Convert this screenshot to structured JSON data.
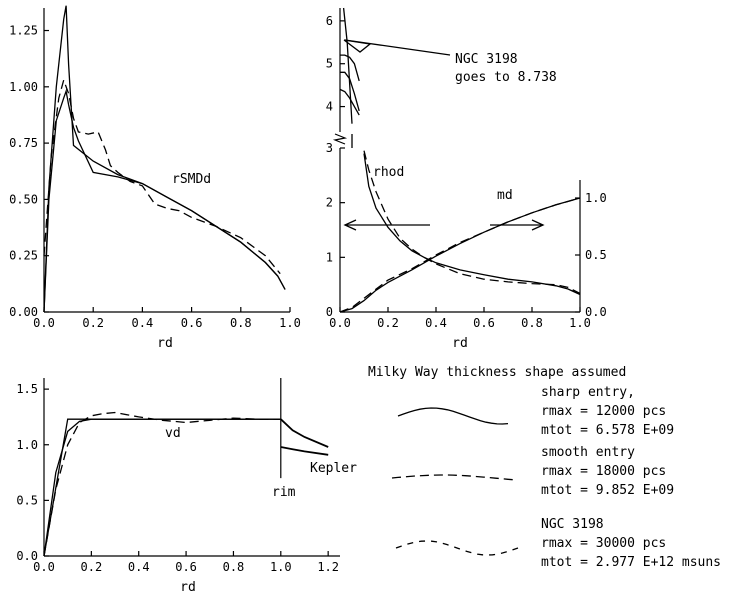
{
  "chart_data": [
    {
      "type": "line",
      "panel": "top-left",
      "series_label": "rSMDd",
      "xlabel": "rd",
      "xlim": [
        0,
        1.0
      ],
      "ylim": [
        0,
        1.35
      ],
      "xticks": [
        "0.0",
        "0.2",
        "0.4",
        "0.6",
        "0.8",
        "1.0"
      ],
      "yticks": [
        "0.00",
        "0.25",
        "0.50",
        "0.75",
        "1.00",
        "1.25"
      ],
      "series": [
        {
          "style": "solid",
          "x": [
            0,
            0.02,
            0.05,
            0.08,
            0.09,
            0.1,
            0.12,
            0.2,
            0.3,
            0.4,
            0.5,
            0.6,
            0.7,
            0.8,
            0.9,
            0.95,
            0.98
          ],
          "y": [
            0,
            0.55,
            1.0,
            1.3,
            1.36,
            1.1,
            0.74,
            0.67,
            0.61,
            0.57,
            0.51,
            0.45,
            0.38,
            0.31,
            0.22,
            0.16,
            0.1
          ]
        },
        {
          "style": "solid",
          "x": [
            0,
            0.02,
            0.05,
            0.08,
            0.09,
            0.1,
            0.12,
            0.14,
            0.2,
            0.3,
            0.4,
            0.5,
            0.6,
            0.7,
            0.8,
            0.9,
            0.95,
            0.98
          ],
          "y": [
            0,
            0.5,
            0.85,
            0.95,
            0.98,
            0.92,
            0.82,
            0.76,
            0.62,
            0.6,
            0.57,
            0.51,
            0.45,
            0.38,
            0.31,
            0.22,
            0.16,
            0.1
          ]
        },
        {
          "style": "dashed",
          "x": [
            0,
            0.03,
            0.06,
            0.08,
            0.1,
            0.12,
            0.14,
            0.18,
            0.22,
            0.25,
            0.27,
            0.3,
            0.35,
            0.4,
            0.45,
            0.5,
            0.55,
            0.6,
            0.7,
            0.8,
            0.9,
            0.96
          ],
          "y": [
            0.25,
            0.7,
            0.95,
            1.03,
            0.97,
            0.86,
            0.8,
            0.79,
            0.8,
            0.72,
            0.65,
            0.62,
            0.58,
            0.56,
            0.48,
            0.46,
            0.45,
            0.42,
            0.38,
            0.33,
            0.25,
            0.17
          ]
        }
      ]
    },
    {
      "type": "line",
      "panel": "top-right",
      "series_labels": [
        "rhod",
        "md"
      ],
      "xlabel": "rd",
      "xlim": [
        0,
        1.0
      ],
      "ylim_left": [
        0,
        3
      ],
      "ylim_left_upper_break": [
        3.5,
        6.3
      ],
      "ylim_right": [
        0,
        1.0
      ],
      "xticks": [
        "0.0",
        "0.2",
        "0.4",
        "0.6",
        "0.8",
        "1.0"
      ],
      "yticks_left": [
        "0",
        "1",
        "2",
        "3"
      ],
      "yticks_left_upper": [
        "4",
        "5",
        "6"
      ],
      "yticks_right": [
        "0.0",
        "0.5",
        "1.0"
      ],
      "series": [
        {
          "name": "rhod",
          "style": "solid",
          "x": [
            0.1,
            0.12,
            0.15,
            0.2,
            0.25,
            0.3,
            0.35,
            0.4,
            0.5,
            0.6,
            0.7,
            0.8,
            0.9,
            0.95,
            1.0
          ],
          "y": [
            2.9,
            2.3,
            1.9,
            1.55,
            1.3,
            1.12,
            1.0,
            0.9,
            0.77,
            0.68,
            0.6,
            0.55,
            0.48,
            0.42,
            0.32
          ]
        },
        {
          "name": "rhod",
          "style": "dashed",
          "x": [
            0.1,
            0.12,
            0.15,
            0.2,
            0.25,
            0.3,
            0.35,
            0.4,
            0.5,
            0.6,
            0.7,
            0.8,
            0.9,
            0.95,
            1.0
          ],
          "y": [
            2.95,
            2.6,
            2.2,
            1.7,
            1.35,
            1.15,
            1.0,
            0.88,
            0.7,
            0.6,
            0.55,
            0.52,
            0.5,
            0.45,
            0.34
          ]
        },
        {
          "name": "md",
          "style": "solid",
          "x": [
            0,
            0.05,
            0.1,
            0.15,
            0.2,
            0.3,
            0.4,
            0.5,
            0.6,
            0.7,
            0.8,
            0.9,
            1.0
          ],
          "y": [
            0,
            0.03,
            0.1,
            0.19,
            0.26,
            0.37,
            0.49,
            0.6,
            0.7,
            0.79,
            0.87,
            0.94,
            1.0
          ]
        },
        {
          "name": "md",
          "style": "dashed",
          "x": [
            0,
            0.05,
            0.1,
            0.15,
            0.2,
            0.3,
            0.4,
            0.5,
            0.6,
            0.7,
            0.8,
            0.9,
            1.0
          ],
          "y": [
            0,
            0.04,
            0.12,
            0.2,
            0.28,
            0.38,
            0.5,
            0.61,
            0.7,
            0.79,
            0.87,
            0.94,
            1.0
          ]
        }
      ],
      "upper_series": [
        {
          "style": "solid",
          "x": [
            0.0,
            0.02,
            0.04,
            0.06,
            0.08
          ],
          "y": [
            5.2,
            5.2,
            5.15,
            5.0,
            4.6
          ]
        },
        {
          "style": "solid",
          "x": [
            0.0,
            0.02,
            0.04,
            0.06,
            0.08
          ],
          "y": [
            4.8,
            4.8,
            4.65,
            4.3,
            3.9
          ]
        },
        {
          "style": "solid",
          "x": [
            0.0,
            0.02,
            0.04,
            0.06,
            0.08
          ],
          "y": [
            4.4,
            4.35,
            4.2,
            4.0,
            3.8
          ]
        }
      ],
      "annotation": {
        "line1": "NGC 3198",
        "line2": "goes to 8.738"
      }
    },
    {
      "type": "line",
      "panel": "bottom-left",
      "series_labels": [
        "vd",
        "rim",
        "Kepler"
      ],
      "xlabel": "rd",
      "xlim": [
        0,
        1.25
      ],
      "ylim": [
        0,
        1.6
      ],
      "xticks": [
        "0.0",
        "0.2",
        "0.4",
        "0.6",
        "0.8",
        "1.0",
        "1.2"
      ],
      "yticks": [
        "0.0",
        "0.5",
        "1.0",
        "1.5"
      ],
      "series": [
        {
          "style": "solid",
          "x": [
            0,
            0.1,
            1.0
          ],
          "y": [
            0,
            1.23,
            1.23
          ]
        },
        {
          "style": "solid",
          "x": [
            0,
            0.05,
            0.1,
            0.15,
            0.2,
            0.3,
            0.5,
            0.7,
            0.9,
            1.0
          ],
          "y": [
            0,
            0.75,
            1.12,
            1.21,
            1.23,
            1.23,
            1.23,
            1.23,
            1.23,
            1.23
          ]
        },
        {
          "style": "dashed",
          "x": [
            0,
            0.05,
            0.1,
            0.15,
            0.2,
            0.25,
            0.3,
            0.4,
            0.5,
            0.6,
            0.7,
            0.8,
            0.9,
            1.0
          ],
          "y": [
            0,
            0.6,
            1.0,
            1.2,
            1.26,
            1.28,
            1.29,
            1.25,
            1.22,
            1.2,
            1.22,
            1.24,
            1.23,
            1.23
          ]
        },
        {
          "style": "solid",
          "x": [
            1.0,
            1.05,
            1.1,
            1.2
          ],
          "y": [
            1.23,
            1.13,
            1.07,
            0.98
          ]
        },
        {
          "style": "solid",
          "x": [
            1.0,
            1.05,
            1.1,
            1.2
          ],
          "y": [
            0.98,
            0.96,
            0.94,
            0.91
          ]
        }
      ]
    }
  ],
  "legend": {
    "title": "Milky Way thickness shape assumed",
    "entries": [
      {
        "style": "solid",
        "lines": [
          "sharp entry,",
          "rmax = 12000 pcs",
          "mtot = 6.578 E+09"
        ]
      },
      {
        "style": "dashed",
        "lines": [
          "smooth entry",
          "rmax = 18000 pcs",
          "mtot = 9.852 E+09"
        ]
      },
      {
        "style": "dashed-short",
        "lines": [
          "NGC 3198",
          "rmax = 30000 pcs",
          "mtot = 2.977 E+12 msuns"
        ]
      }
    ]
  }
}
